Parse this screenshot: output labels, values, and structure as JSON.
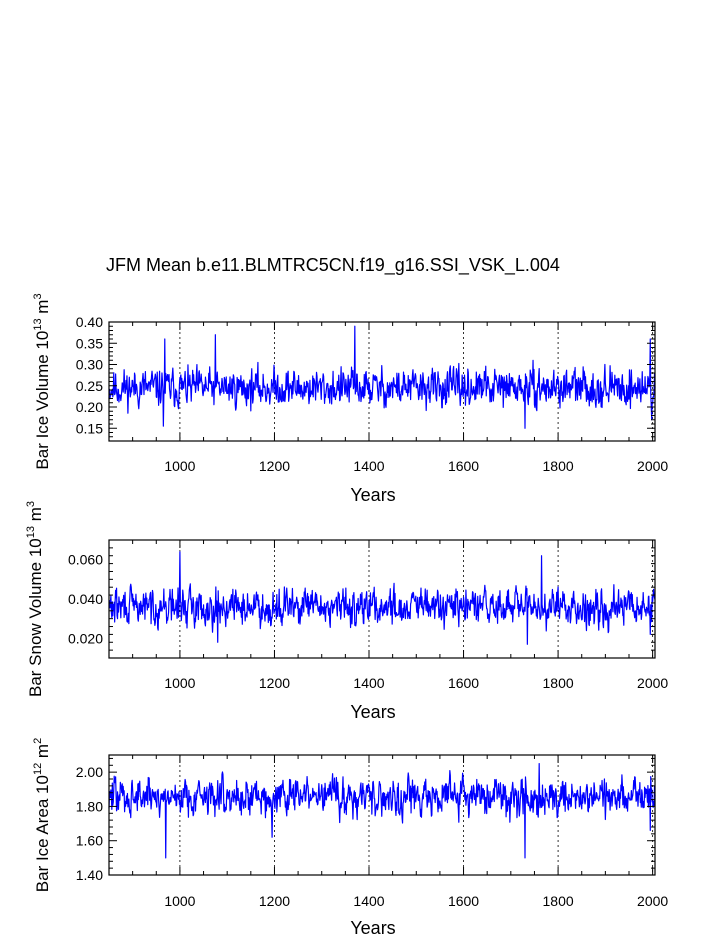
{
  "figure": {
    "title": "JFM Mean b.e11.BLMTRC5CN.f19_g16.SSI_VSK_L.004"
  },
  "chart_data": [
    {
      "type": "line",
      "title": "JFM Mean b.e11.BLMTRC5CN.f19_g16.SSI_VSK_L.004",
      "xlabel": "Years",
      "ylabel": {
        "main": "Bar Ice Volume 10",
        "sup": "13",
        "unit": " m",
        "unit_sup": "3"
      },
      "xlim": [
        850,
        2005
      ],
      "ylim": [
        0.12,
        0.4
      ],
      "xticks": [
        1000,
        1200,
        1400,
        1600,
        1800,
        2000
      ],
      "xtick_labels": [
        "1000",
        "1200",
        "1400",
        "1600",
        "1800",
        "2000"
      ],
      "yticks": [
        0.15,
        0.2,
        0.25,
        0.3,
        0.35,
        0.4
      ],
      "ytick_labels": [
        "0.15",
        "0.20",
        "0.25",
        "0.30",
        "0.35",
        "0.40"
      ],
      "gridlines_x": [
        1000,
        1200,
        1400,
        1600,
        1800,
        2000
      ],
      "series": [
        {
          "name": "Bar Ice Volume",
          "color": "#0000ff",
          "x_start": 850,
          "x_end": 2005,
          "mean": 0.245,
          "spread": 0.048,
          "seed": 11,
          "spikes": [
            [
              965,
              0.155
            ],
            [
              968,
              0.36
            ],
            [
              1370,
              0.39
            ],
            [
              1730,
              0.15
            ],
            [
              1995,
              0.36
            ],
            [
              1998,
              0.17
            ],
            [
              1075,
              0.37
            ]
          ]
        }
      ]
    },
    {
      "type": "line",
      "title": "",
      "xlabel": "Years",
      "ylabel": {
        "main": "Bar Snow Volume 10",
        "sup": "13",
        "unit": " m",
        "unit_sup": "3"
      },
      "xlim": [
        850,
        2005
      ],
      "ylim": [
        0.01,
        0.07
      ],
      "xticks": [
        1000,
        1200,
        1400,
        1600,
        1800,
        2000
      ],
      "xtick_labels": [
        "1000",
        "1200",
        "1400",
        "1600",
        "1800",
        "2000"
      ],
      "yticks": [
        0.02,
        0.04,
        0.06
      ],
      "ytick_labels": [
        "0.020",
        "0.040",
        "0.060"
      ],
      "gridlines_x": [
        1000,
        1200,
        1400,
        1600,
        1800,
        2000
      ],
      "series": [
        {
          "name": "Bar Snow Volume",
          "color": "#0000ff",
          "x_start": 850,
          "x_end": 2005,
          "mean": 0.036,
          "spread": 0.01,
          "seed": 29,
          "spikes": [
            [
              1000,
              0.064
            ],
            [
              1765,
              0.062
            ],
            [
              1080,
              0.018
            ],
            [
              1735,
              0.017
            ],
            [
              1995,
              0.022
            ]
          ]
        }
      ]
    },
    {
      "type": "line",
      "title": "",
      "xlabel": "Years",
      "ylabel": {
        "main": "Bar Ice Area 10",
        "sup": "12",
        "unit": " m",
        "unit_sup": "2"
      },
      "xlim": [
        850,
        2005
      ],
      "ylim": [
        1.4,
        2.1
      ],
      "xticks": [
        1000,
        1200,
        1400,
        1600,
        1800,
        2000
      ],
      "xtick_labels": [
        "1000",
        "1200",
        "1400",
        "1600",
        "1800",
        "2000"
      ],
      "yticks": [
        1.4,
        1.6,
        1.8,
        2.0
      ],
      "ytick_labels": [
        "1.40",
        "1.60",
        "1.80",
        "2.00"
      ],
      "gridlines_x": [
        1000,
        1200,
        1400,
        1600,
        1800,
        2000
      ],
      "series": [
        {
          "name": "Bar Ice Area",
          "color": "#0000ff",
          "x_start": 850,
          "x_end": 2005,
          "mean": 1.86,
          "spread": 0.12,
          "seed": 47,
          "spikes": [
            [
              970,
              1.5
            ],
            [
              1730,
              1.5
            ],
            [
              1760,
              2.05
            ],
            [
              1195,
              1.62
            ],
            [
              1995,
              1.66
            ]
          ]
        }
      ]
    }
  ]
}
